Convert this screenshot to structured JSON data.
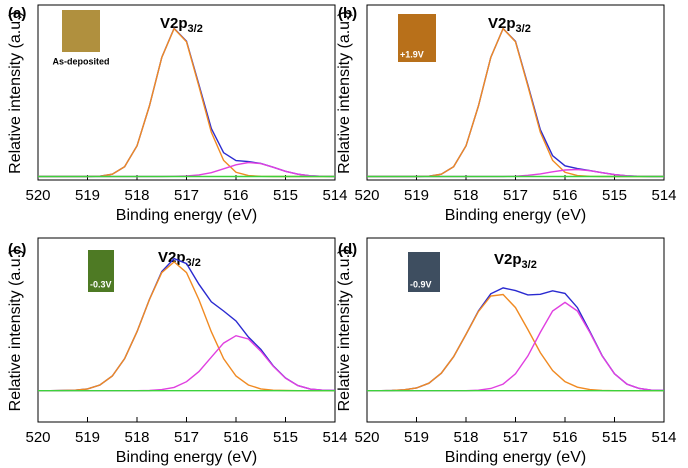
{
  "chart_data": [
    {
      "type": "line",
      "panel_label": "(a)",
      "title": "V2p",
      "title_subscript": "3/2",
      "inset_label": "As-deposited",
      "inset_color": "#b0903e",
      "x_label": "Binding energy (eV)",
      "y_label": "Relative intensity (a.u.)",
      "x": [
        520,
        519.75,
        519.5,
        519.25,
        519,
        518.75,
        518.5,
        518.25,
        518,
        517.75,
        517.5,
        517.25,
        517,
        516.75,
        516.5,
        516.25,
        516,
        515.75,
        515.5,
        515.25,
        515,
        514.75,
        514.5,
        514.25,
        514
      ],
      "xlim": [
        520,
        514
      ],
      "xticks": [
        520,
        519,
        518,
        517,
        516,
        515,
        514
      ],
      "ylim": [
        0,
        100
      ],
      "series": [
        {
          "color": "#2a2ad0",
          "values": [
            2,
            2,
            2,
            2,
            2,
            2.2,
            3.3,
            7.6,
            19.5,
            42.3,
            70.1,
            86.6,
            79.3,
            54.5,
            29.5,
            15.6,
            11.1,
            10.5,
            9.5,
            7.3,
            5,
            3.3,
            2.4,
            2.1,
            2
          ]
        },
        {
          "color": "#f08a22",
          "values": [
            2,
            2,
            2,
            2,
            2,
            2.2,
            3.3,
            7.6,
            19.5,
            42.3,
            70.1,
            86.5,
            79,
            53.6,
            27.3,
            11.2,
            4.4,
            2.5,
            2.1,
            2,
            2,
            2,
            2,
            2,
            2
          ]
        },
        {
          "color": "#e040e0",
          "values": [
            2,
            2,
            2,
            2,
            2,
            2,
            2,
            2,
            2,
            2,
            2,
            2.1,
            2.3,
            2.9,
            4.2,
            6.4,
            8.7,
            10,
            9.4,
            7.3,
            5,
            3.3,
            2.4,
            2.1,
            2
          ]
        },
        {
          "color": "#3cd23c",
          "values": [
            2,
            2,
            2,
            2,
            2,
            2,
            2,
            2,
            2,
            2,
            2,
            2,
            2,
            2,
            2,
            2,
            2,
            2,
            2,
            2,
            2,
            2,
            2,
            2,
            2
          ]
        }
      ]
    },
    {
      "type": "line",
      "panel_label": "(b)",
      "title": "V2p",
      "title_subscript": "3/2",
      "inset_label": "+1.9V",
      "inset_color": "#b8701a",
      "x_label": "Binding energy (eV)",
      "y_label": "Relative intensity (a.u.)",
      "x": [
        520,
        519.75,
        519.5,
        519.25,
        519,
        518.75,
        518.5,
        518.25,
        518,
        517.75,
        517.5,
        517.25,
        517,
        516.75,
        516.5,
        516.25,
        516,
        515.75,
        515.5,
        515.25,
        515,
        514.75,
        514.5,
        514.25,
        514
      ],
      "xlim": [
        520,
        514
      ],
      "xticks": [
        520,
        519,
        518,
        517,
        516,
        515,
        514
      ],
      "ylim": [
        0,
        100
      ],
      "series": [
        {
          "color": "#2a2ad0",
          "values": [
            2,
            2,
            2,
            2,
            2,
            2.2,
            3.3,
            7.6,
            19.5,
            42.3,
            70.1,
            86.5,
            79.2,
            54.3,
            28.8,
            13.9,
            8.1,
            6.5,
            5.4,
            4.2,
            3.1,
            2.4,
            2.1,
            2,
            2
          ]
        },
        {
          "color": "#f08a22",
          "values": [
            2,
            2,
            2,
            2,
            2,
            2.2,
            3.3,
            7.6,
            19.5,
            42.3,
            70.1,
            86.5,
            79,
            53.6,
            27.3,
            11.2,
            4.4,
            2.5,
            2.1,
            2,
            2,
            2,
            2,
            2,
            2
          ]
        },
        {
          "color": "#e040e0",
          "values": [
            2,
            2,
            2,
            2,
            2,
            2,
            2,
            2,
            2,
            2,
            2,
            2,
            2.2,
            2.7,
            3.5,
            4.7,
            5.7,
            6,
            5.3,
            4.2,
            3.1,
            2.4,
            2.1,
            2,
            2
          ]
        },
        {
          "color": "#3cd23c",
          "values": [
            2,
            2,
            2,
            2,
            2,
            2,
            2,
            2,
            2,
            2,
            2,
            2,
            2,
            2,
            2,
            2,
            2,
            2,
            2,
            2,
            2,
            2,
            2,
            2,
            2
          ]
        }
      ]
    },
    {
      "type": "line",
      "panel_label": "(c)",
      "title": "V2p",
      "title_subscript": "3/2",
      "inset_label": "-0.3V",
      "inset_color": "#4e7a24",
      "x_label": "Binding energy (eV)",
      "y_label": "Relative intensity (a.u.)",
      "x": [
        520,
        519.75,
        519.5,
        519.25,
        519,
        518.75,
        518.5,
        518.25,
        518,
        517.75,
        517.5,
        517.25,
        517,
        516.75,
        516.5,
        516.25,
        516,
        515.75,
        515.5,
        515.25,
        515,
        514.75,
        514.5,
        514.25,
        514
      ],
      "xlim": [
        520,
        514
      ],
      "xticks": [
        520,
        519,
        518,
        517,
        516,
        515,
        514
      ],
      "ylim": [
        -15,
        85
      ],
      "series": [
        {
          "color": "#2a2ad0",
          "values": [
            2,
            2,
            2.1,
            2.3,
            3,
            5.1,
            10,
            19.4,
            34.1,
            51.6,
            66.8,
            73.8,
            71.1,
            59.9,
            50.3,
            45.3,
            39.9,
            31.2,
            24.5,
            15.6,
            8.9,
            4.8,
            2.9,
            2.3,
            2.1
          ]
        },
        {
          "color": "#f08a22",
          "values": [
            2,
            2,
            2.1,
            2.3,
            3,
            5.1,
            10,
            19.4,
            34.1,
            51.5,
            66.2,
            72,
            66.2,
            51.5,
            34.1,
            19.4,
            10,
            5.1,
            3,
            2.3,
            2.1,
            2,
            2,
            2,
            2
          ]
        },
        {
          "color": "#e040e0",
          "values": [
            2,
            2,
            2,
            2,
            2,
            2,
            2,
            2,
            2,
            2.1,
            2.6,
            3.8,
            6.9,
            12.4,
            20.2,
            27.9,
            31.9,
            30.1,
            23.5,
            15.3,
            8.8,
            4.8,
            2.9,
            2.3,
            2.1
          ]
        },
        {
          "color": "#3cd23c",
          "values": [
            2,
            2,
            2,
            2,
            2,
            2,
            2,
            2,
            2,
            2,
            2,
            2,
            2,
            2,
            2,
            2,
            2,
            2,
            2,
            2,
            2,
            2,
            2,
            2,
            2
          ]
        }
      ]
    },
    {
      "type": "line",
      "panel_label": "(d)",
      "title": "V2p",
      "title_subscript": "3/2",
      "inset_label": "-0.9V",
      "inset_color": "#3e4e60",
      "x_label": "Binding energy (eV)",
      "y_label": "Relative intensity (a.u.)",
      "x": [
        520,
        519.75,
        519.5,
        519.25,
        519,
        518.75,
        518.5,
        518.25,
        518,
        517.75,
        517.5,
        517.25,
        517,
        516.75,
        516.5,
        516.25,
        516,
        515.75,
        515.5,
        515.25,
        515,
        514.75,
        514.5,
        514.25,
        514
      ],
      "xlim": [
        520,
        514
      ],
      "xticks": [
        520,
        519,
        518,
        517,
        516,
        515,
        514
      ],
      "ylim": [
        -15,
        85
      ],
      "series": [
        {
          "color": "#2a2ad0",
          "values": [
            2,
            2,
            2.1,
            2.5,
            3.5,
            6.1,
            11.5,
            20.5,
            32.6,
            45.3,
            54.7,
            57.9,
            56.4,
            54.1,
            54.4,
            56.3,
            54.9,
            47.2,
            34.3,
            21.1,
            11.2,
            5.6,
            3.2,
            2.3,
            2.1
          ]
        },
        {
          "color": "#f08a22",
          "values": [
            2,
            2,
            2.1,
            2.5,
            3.5,
            6.1,
            11.5,
            20.5,
            32.6,
            45,
            53.5,
            54.3,
            47.2,
            35.2,
            22.7,
            13,
            6.9,
            3.9,
            2.6,
            2.2,
            2,
            2,
            2,
            2,
            2
          ]
        },
        {
          "color": "#e040e0",
          "values": [
            2,
            2,
            2,
            2,
            2,
            2,
            2,
            2,
            2,
            2.3,
            3.2,
            5.6,
            11.2,
            20.9,
            33.7,
            45.3,
            50,
            45.3,
            33.7,
            20.9,
            11.2,
            5.6,
            3.2,
            2.3,
            2.1
          ]
        },
        {
          "color": "#3cd23c",
          "values": [
            2,
            2,
            2,
            2,
            2,
            2,
            2,
            2,
            2,
            2,
            2,
            2,
            2,
            2,
            2,
            2,
            2,
            2,
            2,
            2,
            2,
            2,
            2,
            2,
            2
          ]
        }
      ]
    }
  ]
}
